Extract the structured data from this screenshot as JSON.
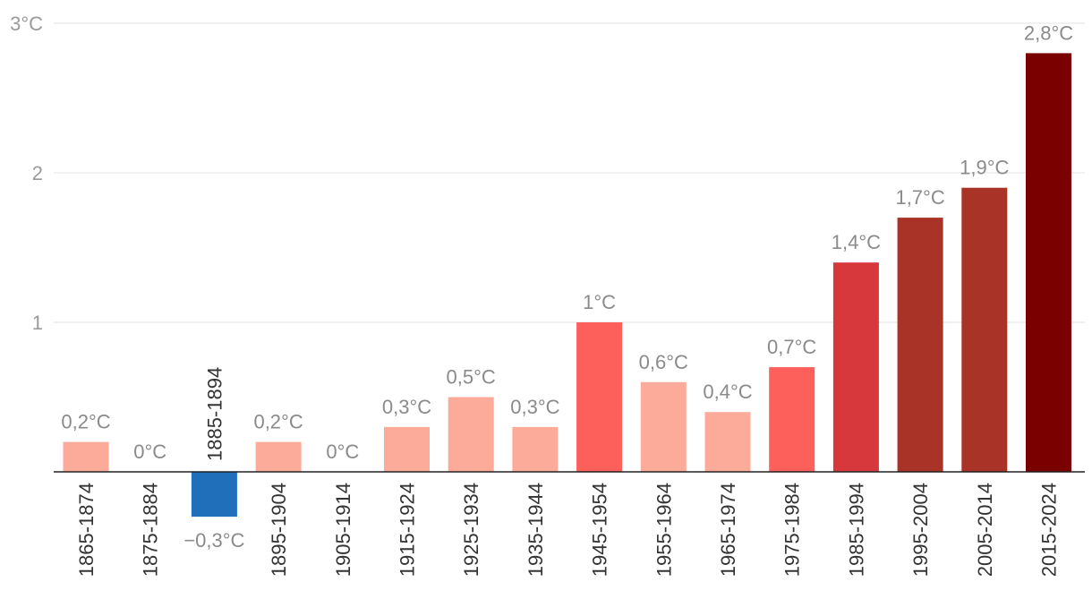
{
  "chart_data": {
    "type": "bar",
    "title": "",
    "xlabel": "",
    "ylabel": "",
    "ylim": [
      -0.3,
      3
    ],
    "y_ticks": [
      {
        "value": 1,
        "label": "1"
      },
      {
        "value": 2,
        "label": "2"
      },
      {
        "value": 3,
        "label": "3°C"
      }
    ],
    "grid": true,
    "categories": [
      "1865-1874",
      "1875-1884",
      "1885-1894",
      "1895-1904",
      "1905-1914",
      "1915-1924",
      "1925-1934",
      "1935-1944",
      "1945-1954",
      "1955-1964",
      "1965-1974",
      "1975-1984",
      "1985-1994",
      "1995-2004",
      "2005-2014",
      "2015-2024"
    ],
    "values": [
      0.2,
      0,
      -0.3,
      0.2,
      0,
      0.3,
      0.5,
      0.3,
      1,
      0.6,
      0.4,
      0.7,
      1.4,
      1.7,
      1.9,
      2.8
    ],
    "value_labels": [
      "0,2°C",
      "0°C",
      "−0,3°C",
      "0,2°C",
      "0°C",
      "0,3°C",
      "0,5°C",
      "0,3°C",
      "1°C",
      "0,6°C",
      "0,4°C",
      "0,7°C",
      "1,4°C",
      "1,7°C",
      "1,9°C",
      "2,8°C"
    ],
    "colors": [
      "#fcab9b",
      "#fcab9b",
      "#1f6fba",
      "#fcab9b",
      "#fcab9b",
      "#fcab9b",
      "#fcab9b",
      "#fcab9b",
      "#fd5f5a",
      "#fcab9b",
      "#fcab9b",
      "#fd5f5a",
      "#d6383c",
      "#a83326",
      "#a83326",
      "#7a0000"
    ]
  }
}
